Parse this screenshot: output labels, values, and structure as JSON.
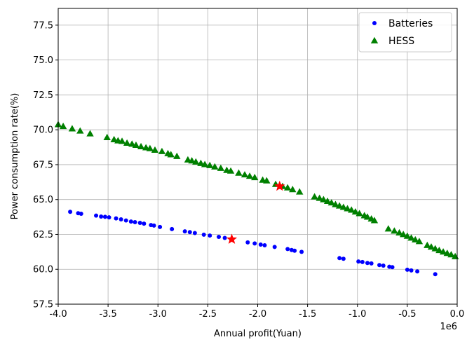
{
  "chart_data": {
    "type": "scatter",
    "xlabel": "Annual profit(Yuan)",
    "ylabel": "Power consumption rate(%)",
    "x_offset_text": "1e6",
    "xlim": [
      -4.0,
      0.0
    ],
    "ylim": [
      57.5,
      78.7
    ],
    "x_ticks": [
      "-4.0",
      "-3.5",
      "-3.0",
      "-2.5",
      "-2.0",
      "-1.5",
      "-1.0",
      "-0.5",
      "0.0"
    ],
    "y_ticks": [
      "57.5",
      "60.0",
      "62.5",
      "65.0",
      "67.5",
      "70.0",
      "72.5",
      "75.0",
      "77.5"
    ],
    "grid": true,
    "legend_position": "top-right",
    "series": [
      {
        "name": "Batteries",
        "marker": "circle",
        "color": "#0000ff",
        "points": [
          [
            -3.88,
            64.12
          ],
          [
            -3.8,
            64.02
          ],
          [
            -3.77,
            63.98
          ],
          [
            -3.62,
            63.85
          ],
          [
            -3.57,
            63.78
          ],
          [
            -3.53,
            63.76
          ],
          [
            -3.49,
            63.72
          ],
          [
            -3.42,
            63.65
          ],
          [
            -3.37,
            63.58
          ],
          [
            -3.32,
            63.5
          ],
          [
            -3.27,
            63.42
          ],
          [
            -3.23,
            63.38
          ],
          [
            -3.18,
            63.33
          ],
          [
            -3.14,
            63.27
          ],
          [
            -3.07,
            63.17
          ],
          [
            -3.04,
            63.13
          ],
          [
            -2.98,
            63.03
          ],
          [
            -2.86,
            62.88
          ],
          [
            -2.73,
            62.72
          ],
          [
            -2.68,
            62.66
          ],
          [
            -2.63,
            62.6
          ],
          [
            -2.54,
            62.48
          ],
          [
            -2.48,
            62.42
          ],
          [
            -2.39,
            62.32
          ],
          [
            -2.33,
            62.25
          ],
          [
            -2.1,
            61.93
          ],
          [
            -2.03,
            61.85
          ],
          [
            -1.97,
            61.77
          ],
          [
            -1.93,
            61.72
          ],
          [
            -1.83,
            61.6
          ],
          [
            -1.7,
            61.45
          ],
          [
            -1.66,
            61.38
          ],
          [
            -1.63,
            61.33
          ],
          [
            -1.56,
            61.25
          ],
          [
            -1.18,
            60.8
          ],
          [
            -1.14,
            60.75
          ],
          [
            -0.99,
            60.56
          ],
          [
            -0.95,
            60.52
          ],
          [
            -0.9,
            60.45
          ],
          [
            -0.86,
            60.42
          ],
          [
            -0.78,
            60.3
          ],
          [
            -0.74,
            60.26
          ],
          [
            -0.68,
            60.18
          ],
          [
            -0.65,
            60.15
          ],
          [
            -0.5,
            59.97
          ],
          [
            -0.46,
            59.92
          ],
          [
            -0.4,
            59.85
          ],
          [
            -0.22,
            59.65
          ]
        ]
      },
      {
        "name": "HESS",
        "marker": "triangle",
        "color": "#008000",
        "points": [
          [
            -4.0,
            70.38
          ],
          [
            -3.95,
            70.25
          ],
          [
            -3.86,
            70.08
          ],
          [
            -3.78,
            69.92
          ],
          [
            -3.68,
            69.72
          ],
          [
            -3.51,
            69.45
          ],
          [
            -3.44,
            69.3
          ],
          [
            -3.4,
            69.22
          ],
          [
            -3.36,
            69.18
          ],
          [
            -3.31,
            69.05
          ],
          [
            -3.26,
            68.98
          ],
          [
            -3.22,
            68.9
          ],
          [
            -3.17,
            68.8
          ],
          [
            -3.12,
            68.72
          ],
          [
            -3.08,
            68.66
          ],
          [
            -3.03,
            68.55
          ],
          [
            -2.96,
            68.45
          ],
          [
            -2.9,
            68.3
          ],
          [
            -2.87,
            68.22
          ],
          [
            -2.81,
            68.1
          ],
          [
            -2.7,
            67.85
          ],
          [
            -2.66,
            67.78
          ],
          [
            -2.62,
            67.7
          ],
          [
            -2.57,
            67.6
          ],
          [
            -2.53,
            67.52
          ],
          [
            -2.48,
            67.45
          ],
          [
            -2.43,
            67.35
          ],
          [
            -2.37,
            67.25
          ],
          [
            -2.31,
            67.1
          ],
          [
            -2.27,
            67.05
          ],
          [
            -2.19,
            66.9
          ],
          [
            -2.13,
            66.78
          ],
          [
            -2.08,
            66.68
          ],
          [
            -2.03,
            66.58
          ],
          [
            -1.95,
            66.4
          ],
          [
            -1.91,
            66.35
          ],
          [
            -1.82,
            66.1
          ],
          [
            -1.75,
            65.95
          ],
          [
            -1.7,
            65.85
          ],
          [
            -1.65,
            65.72
          ],
          [
            -1.58,
            65.55
          ],
          [
            -1.43,
            65.2
          ],
          [
            -1.38,
            65.1
          ],
          [
            -1.34,
            65.0
          ],
          [
            -1.3,
            64.88
          ],
          [
            -1.26,
            64.77
          ],
          [
            -1.22,
            64.65
          ],
          [
            -1.18,
            64.55
          ],
          [
            -1.14,
            64.45
          ],
          [
            -1.1,
            64.35
          ],
          [
            -1.06,
            64.25
          ],
          [
            -1.02,
            64.12
          ],
          [
            -0.98,
            64.0
          ],
          [
            -0.93,
            63.85
          ],
          [
            -0.9,
            63.75
          ],
          [
            -0.86,
            63.62
          ],
          [
            -0.83,
            63.5
          ],
          [
            -0.69,
            62.9
          ],
          [
            -0.63,
            62.75
          ],
          [
            -0.58,
            62.62
          ],
          [
            -0.54,
            62.5
          ],
          [
            -0.5,
            62.38
          ],
          [
            -0.46,
            62.25
          ],
          [
            -0.42,
            62.12
          ],
          [
            -0.38,
            62.0
          ],
          [
            -0.3,
            61.72
          ],
          [
            -0.26,
            61.6
          ],
          [
            -0.22,
            61.48
          ],
          [
            -0.18,
            61.36
          ],
          [
            -0.14,
            61.25
          ],
          [
            -0.1,
            61.15
          ],
          [
            -0.06,
            61.05
          ],
          [
            -0.02,
            60.92
          ]
        ]
      },
      {
        "name": "",
        "marker": "star",
        "color": "#ff0000",
        "points": [
          [
            -2.26,
            62.15
          ],
          [
            -1.78,
            65.95
          ]
        ]
      }
    ]
  }
}
